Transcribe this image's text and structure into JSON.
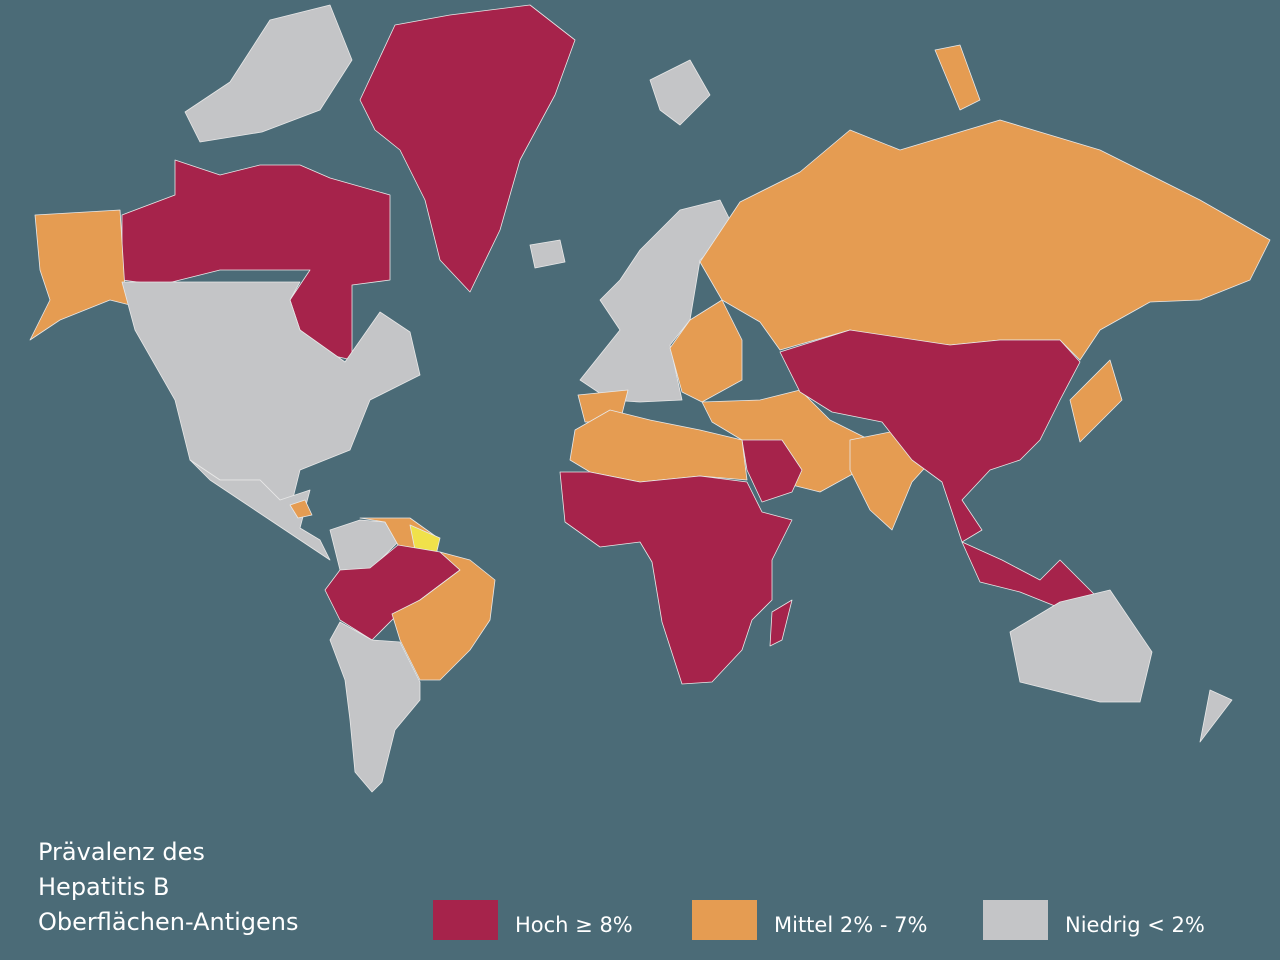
{
  "legend": {
    "title": [
      "Prävalenz des",
      "Hepatitis B",
      "Oberflächen-Antigens"
    ],
    "items": [
      {
        "label": "Hoch ≥ 8%",
        "color": "#a6234b"
      },
      {
        "label": "Mittel 2% - 7%",
        "color": "#e59c52"
      },
      {
        "label": "Niedrig < 2%",
        "color": "#c4c5c7"
      }
    ]
  }
}
